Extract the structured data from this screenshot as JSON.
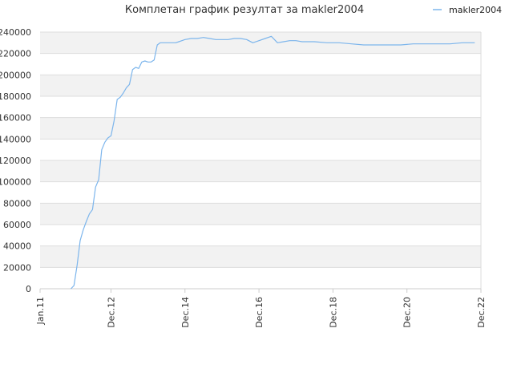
{
  "chart_data": {
    "type": "line",
    "title": "Комплетан график резултат за makler2004",
    "xlabel": "",
    "ylabel": "",
    "legend": {
      "position": "top-right"
    },
    "grid": true,
    "colors": {
      "series": "#7cb5ec",
      "band": "#f2f2f2",
      "grid": "#dddddd",
      "axis": "#cccccc"
    },
    "xlim": [
      "2011-01",
      "2022-12"
    ],
    "ylim": [
      0,
      240000
    ],
    "x_ticks": [
      "Jan.11",
      "Dec.12",
      "Dec.14",
      "Dec.16",
      "Dec.18",
      "Dec.20",
      "Dec.22"
    ],
    "x_tick_dates": [
      "2011-01",
      "2012-12",
      "2014-12",
      "2016-12",
      "2018-12",
      "2020-12",
      "2022-12"
    ],
    "y_ticks": [
      "0",
      "20000",
      "40000",
      "60000",
      "80000",
      "100000",
      "120000",
      "140000",
      "160000",
      "180000",
      "200000",
      "220000",
      "240000"
    ],
    "y_tick_values": [
      0,
      20000,
      40000,
      60000,
      80000,
      100000,
      120000,
      140000,
      160000,
      180000,
      200000,
      220000,
      240000
    ],
    "series": [
      {
        "name": "makler2004",
        "x": [
          "2011-11",
          "2011-12",
          "2012-01",
          "2012-02",
          "2012-03",
          "2012-04",
          "2012-05",
          "2012-06",
          "2012-07",
          "2012-08",
          "2012-09",
          "2012-10",
          "2012-11",
          "2012-12",
          "2013-01",
          "2013-02",
          "2013-03",
          "2013-04",
          "2013-05",
          "2013-06",
          "2013-07",
          "2013-08",
          "2013-09",
          "2013-10",
          "2013-11",
          "2013-12",
          "2014-01",
          "2014-02",
          "2014-03",
          "2014-04",
          "2014-05",
          "2014-06",
          "2014-07",
          "2014-08",
          "2014-09",
          "2014-10",
          "2014-11",
          "2014-12",
          "2015-02",
          "2015-04",
          "2015-06",
          "2015-08",
          "2015-10",
          "2015-12",
          "2016-02",
          "2016-04",
          "2016-06",
          "2016-08",
          "2016-10",
          "2016-12",
          "2017-02",
          "2017-04",
          "2017-06",
          "2017-08",
          "2017-10",
          "2017-12",
          "2018-02",
          "2018-06",
          "2018-10",
          "2019-02",
          "2019-06",
          "2019-10",
          "2020-02",
          "2020-06",
          "2020-10",
          "2021-02",
          "2021-06",
          "2021-10",
          "2022-02",
          "2022-06",
          "2022-10"
        ],
        "y": [
          0,
          3000,
          22000,
          45000,
          55000,
          63000,
          70000,
          74000,
          95000,
          102000,
          130000,
          137000,
          141000,
          143000,
          157000,
          177000,
          179000,
          183000,
          188000,
          191000,
          205000,
          207000,
          206000,
          212000,
          213000,
          212000,
          212000,
          214000,
          228000,
          230000,
          230000,
          230000,
          230000,
          230000,
          230000,
          231000,
          232000,
          233000,
          234000,
          234000,
          235000,
          234000,
          233000,
          233000,
          233000,
          234000,
          234000,
          233000,
          230000,
          232000,
          234000,
          236000,
          230000,
          231000,
          232000,
          232000,
          231000,
          231000,
          230000,
          230000,
          229000,
          228000,
          228000,
          228000,
          228000,
          229000,
          229000,
          229000,
          229000,
          230000,
          230000
        ]
      }
    ]
  }
}
